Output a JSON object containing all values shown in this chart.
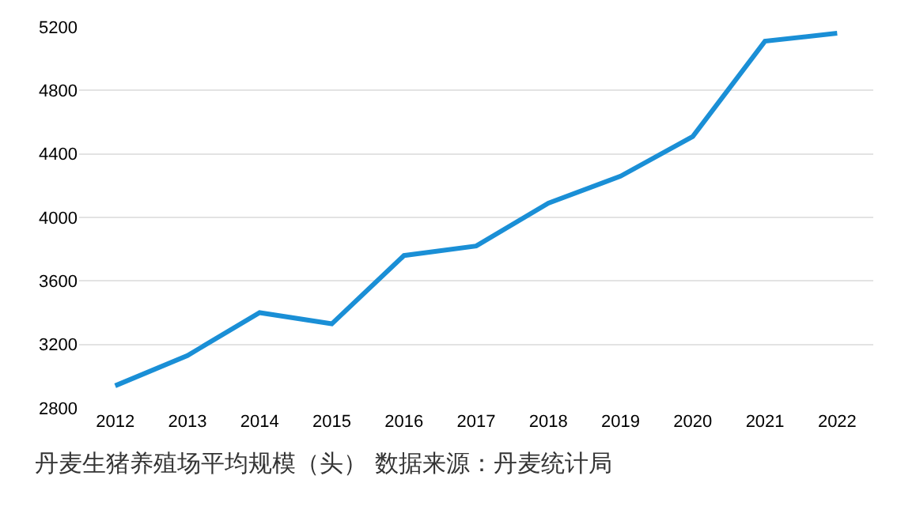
{
  "chart_data": {
    "type": "line",
    "categories": [
      "2012",
      "2013",
      "2014",
      "2015",
      "2016",
      "2017",
      "2018",
      "2019",
      "2020",
      "2021",
      "2022"
    ],
    "series": [
      {
        "color": "#1a8fd6",
        "values": [
          2940,
          3130,
          3400,
          3330,
          3760,
          3820,
          4090,
          4260,
          4510,
          5110,
          5160
        ]
      }
    ],
    "ylim": [
      2800,
      5200
    ],
    "yticks": [
      2800,
      3200,
      3600,
      4000,
      4400,
      4800,
      5200
    ],
    "grid": "y",
    "marker": "none",
    "line_style": "solid",
    "annotations": [
      "丹麦生猪养殖场平均规模（头） 数据来源：丹麦统计局"
    ]
  }
}
